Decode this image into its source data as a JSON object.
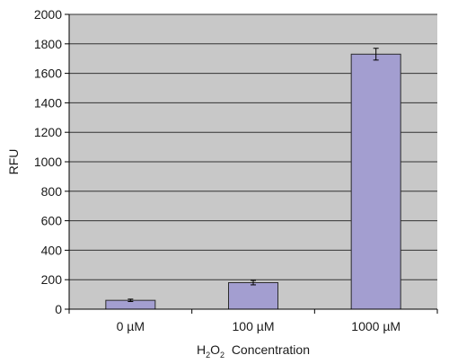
{
  "chart_data": {
    "type": "bar",
    "categories": [
      "0 µM",
      "100 µM",
      "1000 µM"
    ],
    "values": [
      60,
      180,
      1730
    ],
    "error": [
      8,
      15,
      40
    ],
    "ylim": [
      0,
      2000
    ],
    "yticks": [
      0,
      200,
      400,
      600,
      800,
      1000,
      1200,
      1400,
      1600,
      1800,
      2000
    ],
    "ylabel": "RFU",
    "xlabel": {
      "prefix": "H",
      "sub1": "2",
      "mid": "O",
      "sub2": "2",
      "suffix": "  Concentration"
    },
    "grid": true,
    "legend": "none",
    "colors": {
      "bar_fill": "#a39ed0",
      "bar_stroke": "#2b2b2b",
      "plot_bg": "#c8c8c8",
      "grid": "#333333"
    }
  }
}
